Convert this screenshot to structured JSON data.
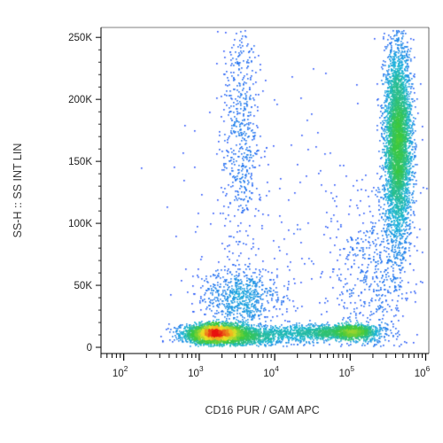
{
  "chart_data": {
    "type": "scatter",
    "style": "density dot plot (blue → green → yellow → red by local density)",
    "xlabel": "CD16 PUR / GAM APC",
    "ylabel": "SS-H :: SS INT LIN",
    "x_scale": "log",
    "xlim": [
      50,
      1100000
    ],
    "ylim": [
      -5000,
      258000
    ],
    "x_ticks": [
      {
        "value": 100,
        "label": "10",
        "exp": "2"
      },
      {
        "value": 1000,
        "label": "10",
        "exp": "3"
      },
      {
        "value": 10000,
        "label": "10",
        "exp": "4"
      },
      {
        "value": 100000,
        "label": "10",
        "exp": "5"
      },
      {
        "value": 1000000,
        "label": "10",
        "exp": "6"
      }
    ],
    "y_ticks": [
      {
        "value": 0,
        "label": "0"
      },
      {
        "value": 50000,
        "label": "50K"
      },
      {
        "value": 100000,
        "label": "100K"
      },
      {
        "value": 150000,
        "label": "150K"
      },
      {
        "value": 200000,
        "label": "200K"
      },
      {
        "value": 250000,
        "label": "250K"
      }
    ],
    "grid": false,
    "clusters": [
      {
        "x_center": 1600,
        "y_center": 12000,
        "x_spread_decades": 0.18,
        "y_sd": 3500,
        "count": 2600
      },
      {
        "x_center": 3000,
        "y_center": 10000,
        "x_spread_decades": 0.35,
        "y_sd": 4500,
        "count": 1400
      },
      {
        "x_center": 40000,
        "y_center": 13000,
        "x_spread_decades": 0.35,
        "y_sd": 3000,
        "count": 900
      },
      {
        "x_center": 110000,
        "y_center": 13000,
        "x_spread_decades": 0.15,
        "y_sd": 3000,
        "count": 800
      },
      {
        "x_center": 3500,
        "y_center": 40000,
        "x_spread_decades": 0.25,
        "y_sd": 12000,
        "count": 700
      },
      {
        "x_center": 3500,
        "y_center": 175000,
        "x_spread_decades": 0.12,
        "y_sd": 50000,
        "count": 550
      },
      {
        "x_center": 420000,
        "y_center": 165000,
        "x_spread_decades": 0.09,
        "y_sd": 40000,
        "count": 4200
      },
      {
        "x_center": 200000,
        "y_center": 60000,
        "x_spread_decades": 0.25,
        "y_sd": 35000,
        "count": 500
      },
      {
        "x_center": 12000,
        "y_center": 80000,
        "x_spread_decades": 0.7,
        "y_sd": 60000,
        "count": 260
      }
    ],
    "colors": {
      "low": "#1f3cff",
      "mid_low": "#18b4d8",
      "mid": "#3cc83c",
      "mid_high": "#f0e024",
      "high": "#e81010",
      "axis": "#000000"
    }
  }
}
